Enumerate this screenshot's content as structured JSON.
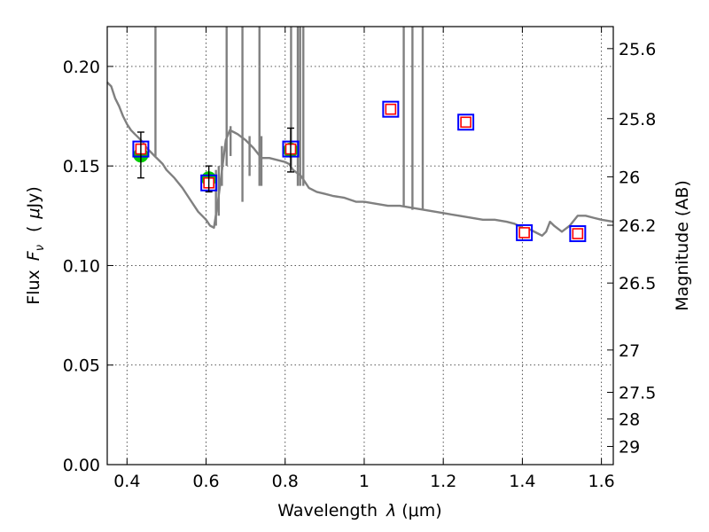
{
  "chart_data": {
    "type": "scatter",
    "x_axis": {
      "label_prefix": "Wavelength",
      "label_symbol": "λ",
      "label_unit": "(μm)",
      "range": [
        0.35,
        1.63
      ],
      "ticks": [
        0.4,
        0.6,
        0.8,
        1.0,
        1.2,
        1.4,
        1.6
      ],
      "tick_labels": [
        "0.4",
        "0.6",
        "0.8",
        "1",
        "1.2",
        "1.4",
        "1.6"
      ]
    },
    "y_axis": {
      "label_prefix": "Flux",
      "label_symbol": "F",
      "label_subscript": "ν",
      "label_unit_open": "(",
      "label_unit_mu": "μ",
      "label_unit_rest": "Jy)",
      "range": [
        0.0,
        0.22
      ],
      "ticks": [
        0.0,
        0.05,
        0.1,
        0.15,
        0.2
      ],
      "tick_labels": [
        "0.00",
        "0.05",
        "0.10",
        "0.15",
        "0.20"
      ]
    },
    "y2_axis": {
      "label": "Magnitude (AB)",
      "ticks": [
        25.6,
        25.8,
        26.0,
        26.2,
        26.5,
        27.0,
        27.5,
        28.0,
        29.0
      ],
      "tick_labels": [
        "25.6",
        "25.8",
        "26",
        "26.2",
        "26.5",
        "27",
        "27.5",
        "28",
        "29"
      ]
    },
    "grid": true,
    "series": [
      {
        "kind": "model-spectrum",
        "color": "#808080",
        "points": [
          [
            0.35,
            0.192
          ],
          [
            0.36,
            0.19
          ],
          [
            0.37,
            0.184
          ],
          [
            0.38,
            0.18
          ],
          [
            0.39,
            0.175
          ],
          [
            0.4,
            0.171
          ],
          [
            0.41,
            0.168
          ],
          [
            0.42,
            0.166
          ],
          [
            0.43,
            0.164
          ],
          [
            0.44,
            0.162
          ],
          [
            0.45,
            0.159
          ],
          [
            0.46,
            0.157
          ],
          [
            0.47,
            0.155
          ],
          [
            0.48,
            0.153
          ],
          [
            0.49,
            0.151
          ],
          [
            0.5,
            0.148
          ],
          [
            0.52,
            0.144
          ],
          [
            0.54,
            0.139
          ],
          [
            0.56,
            0.133
          ],
          [
            0.58,
            0.127
          ],
          [
            0.6,
            0.123
          ],
          [
            0.61,
            0.12
          ],
          [
            0.62,
            0.119
          ],
          [
            0.63,
            0.132
          ],
          [
            0.65,
            0.163
          ],
          [
            0.66,
            0.168
          ],
          [
            0.67,
            0.167
          ],
          [
            0.68,
            0.166
          ],
          [
            0.7,
            0.163
          ],
          [
            0.72,
            0.159
          ],
          [
            0.74,
            0.154
          ],
          [
            0.76,
            0.154
          ],
          [
            0.78,
            0.153
          ],
          [
            0.8,
            0.152
          ],
          [
            0.81,
            0.151
          ],
          [
            0.82,
            0.148
          ],
          [
            0.84,
            0.145
          ],
          [
            0.86,
            0.139
          ],
          [
            0.88,
            0.137
          ],
          [
            0.9,
            0.136
          ],
          [
            0.92,
            0.135
          ],
          [
            0.95,
            0.134
          ],
          [
            0.98,
            0.132
          ],
          [
            1.0,
            0.132
          ],
          [
            1.03,
            0.131
          ],
          [
            1.06,
            0.13
          ],
          [
            1.09,
            0.13
          ],
          [
            1.12,
            0.129
          ],
          [
            1.15,
            0.128
          ],
          [
            1.18,
            0.127
          ],
          [
            1.21,
            0.126
          ],
          [
            1.24,
            0.125
          ],
          [
            1.27,
            0.124
          ],
          [
            1.3,
            0.123
          ],
          [
            1.33,
            0.123
          ],
          [
            1.36,
            0.122
          ],
          [
            1.38,
            0.121
          ],
          [
            1.4,
            0.119
          ],
          [
            1.42,
            0.118
          ],
          [
            1.44,
            0.116
          ],
          [
            1.45,
            0.115
          ],
          [
            1.46,
            0.117
          ],
          [
            1.47,
            0.122
          ],
          [
            1.48,
            0.12
          ],
          [
            1.5,
            0.117
          ],
          [
            1.52,
            0.12
          ],
          [
            1.54,
            0.125
          ],
          [
            1.56,
            0.125
          ],
          [
            1.58,
            0.124
          ],
          [
            1.6,
            0.123
          ],
          [
            1.63,
            0.122
          ]
        ],
        "spikes": [
          [
            0.472,
            0.155,
            0.22
          ],
          [
            0.625,
            0.12,
            0.148
          ],
          [
            0.632,
            0.125,
            0.15
          ],
          [
            0.64,
            0.14,
            0.16
          ],
          [
            0.652,
            0.15,
            0.22
          ],
          [
            0.662,
            0.155,
            0.17
          ],
          [
            0.692,
            0.132,
            0.22
          ],
          [
            0.71,
            0.145,
            0.165
          ],
          [
            0.735,
            0.14,
            0.22
          ],
          [
            0.74,
            0.14,
            0.165
          ],
          [
            0.815,
            0.15,
            0.22
          ],
          [
            0.832,
            0.14,
            0.22
          ],
          [
            0.838,
            0.14,
            0.22
          ],
          [
            0.846,
            0.14,
            0.22
          ],
          [
            1.1,
            0.13,
            0.22
          ],
          [
            1.122,
            0.128,
            0.22
          ],
          [
            1.148,
            0.128,
            0.22
          ]
        ]
      },
      {
        "kind": "observed-photometry",
        "marker": "circle",
        "color": "#00cc00",
        "points": [
          {
            "x": 0.435,
            "y": 0.1555,
            "err": 0.0115
          },
          {
            "x": 0.607,
            "y": 0.1435,
            "err": 0.0065
          },
          {
            "x": 0.814,
            "y": 0.158,
            "err": 0.011
          }
        ]
      },
      {
        "kind": "model-photometry",
        "marker": "square",
        "outer_color": "#0000ff",
        "inner_color": "#ff0000",
        "points": [
          {
            "x": 0.435,
            "y": 0.1585
          },
          {
            "x": 0.607,
            "y": 0.1415
          },
          {
            "x": 0.814,
            "y": 0.1585
          },
          {
            "x": 1.067,
            "y": 0.1785
          },
          {
            "x": 1.257,
            "y": 0.172
          },
          {
            "x": 1.405,
            "y": 0.1165
          },
          {
            "x": 1.54,
            "y": 0.116
          }
        ]
      }
    ]
  }
}
